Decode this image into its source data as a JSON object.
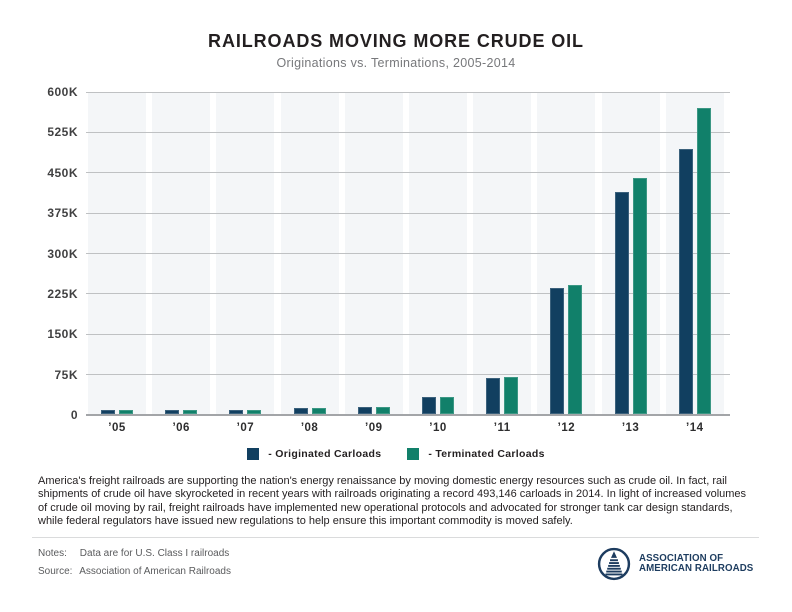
{
  "header": {
    "title": "RAILROADS MOVING MORE CRUDE OIL",
    "subtitle": "Originations vs. Terminations, 2005-2014"
  },
  "chart_data": {
    "type": "bar",
    "title": "RAILROADS MOVING MORE CRUDE OIL",
    "subtitle": "Originations vs. Terminations, 2005-2014",
    "unit": "thousands of carloads",
    "categories": [
      "’05",
      "’06",
      "’07",
      "’08",
      "’09",
      "’10",
      "’11",
      "’12",
      "’13",
      "’14"
    ],
    "series": [
      {
        "name": "Originated Carloads",
        "color": "#113f60",
        "values": [
          8,
          7,
          8,
          12,
          13,
          31,
          66,
          234,
          412,
          493
        ]
      },
      {
        "name": "Terminated Carloads",
        "color": "#11806a",
        "values": [
          7,
          7,
          8,
          12,
          13,
          31,
          68,
          239,
          438,
          569
        ]
      }
    ],
    "ylim": [
      0,
      600
    ],
    "y_tick_labels": [
      "600K",
      "525K",
      "450K",
      "375K",
      "300K",
      "225K",
      "150K",
      "75K",
      "0"
    ],
    "grid": "horizontal",
    "legend_position": "bottom",
    "plot_band_color": "#f4f6f8"
  },
  "legend": {
    "items": [
      {
        "label": "- Originated Carloads",
        "color": "#113f60"
      },
      {
        "label": "- Terminated Carloads",
        "color": "#11806a"
      }
    ]
  },
  "body_paragraph": "America's freight railroads are supporting the nation's energy renaissance by moving domestic energy resources such as crude oil. In fact, rail shipments of crude oil have skyrocketed in recent years with railroads originating a record 493,146 carloads in 2014. In light of increased volumes of crude oil moving by rail, freight railroads have implemented new operational protocols and advocated for stronger tank car design standards, while federal regulators have issued new regulations to help ensure this important commodity is moved safely.",
  "footer": {
    "notes_label": "Notes:",
    "notes_value": "Data are for U.S. Class I railroads",
    "source_label": "Source:",
    "source_value": "Association of American Railroads",
    "logo": {
      "line1": "ASSOCIATION OF",
      "line2": "AMERICAN RAILROADS"
    }
  },
  "colors": {
    "navy": "#113f60",
    "teal": "#11806a",
    "gridline": "#bfc1c3",
    "axis_line": "#a3a5a8",
    "band": "#f4f6f8",
    "logo_navy": "#1d3c5f"
  }
}
